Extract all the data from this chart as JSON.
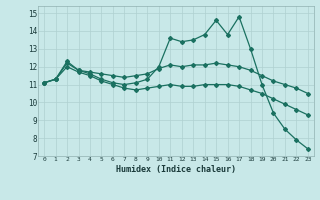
{
  "xlabel": "Humidex (Indice chaleur)",
  "background_color": "#c8e8e8",
  "grid_color": "#afd0d0",
  "line_color": "#1a7060",
  "xlim": [
    -0.5,
    23.5
  ],
  "ylim": [
    7,
    15.4
  ],
  "xticks": [
    0,
    1,
    2,
    3,
    4,
    5,
    6,
    7,
    8,
    9,
    10,
    11,
    12,
    13,
    14,
    15,
    16,
    17,
    18,
    19,
    20,
    21,
    22,
    23
  ],
  "yticks": [
    7,
    8,
    9,
    10,
    11,
    12,
    13,
    14,
    15
  ],
  "line1_x": [
    0,
    1,
    2,
    3,
    4,
    5,
    6,
    7,
    8,
    9,
    10,
    11,
    12,
    13,
    14,
    15,
    16,
    17,
    18,
    19,
    20,
    21,
    22,
    23
  ],
  "line1_y": [
    11.1,
    11.3,
    12.3,
    11.8,
    11.6,
    11.3,
    11.1,
    11.0,
    11.1,
    11.3,
    12.0,
    13.6,
    13.4,
    13.5,
    13.8,
    14.6,
    13.8,
    14.8,
    13.0,
    11.0,
    9.4,
    8.5,
    7.9,
    7.4
  ],
  "line2_x": [
    0,
    1,
    2,
    3,
    4,
    5,
    6,
    7,
    8,
    9,
    10,
    11,
    12,
    13,
    14,
    15,
    16,
    17,
    18,
    19,
    20,
    21,
    22,
    23
  ],
  "line2_y": [
    11.1,
    11.3,
    12.2,
    11.8,
    11.7,
    11.6,
    11.5,
    11.4,
    11.5,
    11.6,
    11.9,
    12.1,
    12.0,
    12.1,
    12.1,
    12.2,
    12.1,
    12.0,
    11.8,
    11.5,
    11.2,
    11.0,
    10.8,
    10.5
  ],
  "line3_x": [
    0,
    1,
    2,
    3,
    4,
    5,
    6,
    7,
    8,
    9,
    10,
    11,
    12,
    13,
    14,
    15,
    16,
    17,
    18,
    19,
    20,
    21,
    22,
    23
  ],
  "line3_y": [
    11.1,
    11.3,
    12.0,
    11.7,
    11.5,
    11.2,
    11.0,
    10.8,
    10.7,
    10.8,
    10.9,
    11.0,
    10.9,
    10.9,
    11.0,
    11.0,
    11.0,
    10.9,
    10.7,
    10.5,
    10.2,
    9.9,
    9.6,
    9.3
  ]
}
